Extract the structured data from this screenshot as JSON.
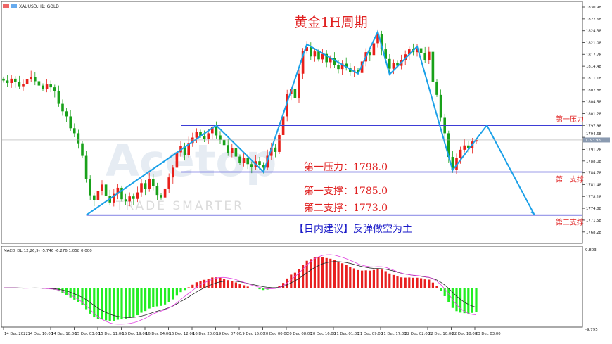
{
  "header": {
    "symbol": "XAUUSD,H1: GOLD"
  },
  "chart_data": [
    {
      "type": "candlestick",
      "title": "黄金1H周期",
      "price_ticks": [
        "1830.98",
        "1827.68",
        "1824.38",
        "1821.08",
        "1817.78",
        "1814.48",
        "1811.18",
        "1807.88",
        "1804.58",
        "1801.28",
        "1797.98",
        "1794.68",
        "1791.28",
        "1788.08",
        "1784.78",
        "1781.48",
        "1778.18",
        "1774.88",
        "1771.58",
        "1768.28"
      ],
      "ylim": [
        1768.28,
        1830.98
      ],
      "current_price": "1793.93",
      "time_ticks": [
        "14 Dec 2022",
        "14 Dec 10:00",
        "14 Dec 18:00",
        "15 Dec 03:00",
        "15 Dec 11:00",
        "15 Dec 19:00",
        "16 Dec 04:00",
        "16 Dec 12:00",
        "16 Dec 20:00",
        "19 Dec 07:00",
        "19 Dec 15:00",
        "20 Dec 00:00",
        "20 Dec 08:00",
        "20 Dec 16:00",
        "21 Dec 01:00",
        "21 Dec 09:00",
        "21 Dec 17:00",
        "22 Dec 02:00",
        "22 Dec 10:00",
        "22 Dec 18:00",
        "23 Dec 03:00"
      ],
      "closes": [
        1810.5,
        1809.8,
        1811,
        1810.2,
        1808.9,
        1809.5,
        1810.8,
        1811.5,
        1810.3,
        1809.1,
        1808.2,
        1809.4,
        1808.6,
        1807.5,
        1804,
        1801.9,
        1800.5,
        1797.2,
        1795.8,
        1793,
        1789.5,
        1783,
        1778.5,
        1777.2,
        1779.8,
        1781.5,
        1778.3,
        1776.5,
        1778.9,
        1780.6,
        1777.4,
        1776.8,
        1778.2,
        1777.5,
        1779.3,
        1781.9,
        1780.2,
        1783.1,
        1781,
        1778.6,
        1777.9,
        1780.4,
        1783.5,
        1786.2,
        1790.5,
        1792.3,
        1789.8,
        1793.1,
        1794.6,
        1796.2,
        1795.1,
        1794.3,
        1795.8,
        1797.5,
        1795.2,
        1794,
        1792.5,
        1790.2,
        1791.6,
        1789.3,
        1787.5,
        1788.9,
        1787.2,
        1786.4,
        1788,
        1786.9,
        1786.2,
        1789.5,
        1791.8,
        1790.6,
        1795.3,
        1800.5,
        1806.8,
        1808.2,
        1805.5,
        1812.4,
        1818.7,
        1819.8,
        1817.2,
        1818.6,
        1816.4,
        1817.9,
        1815.6,
        1816.8,
        1814.9,
        1813.7,
        1815.2,
        1814,
        1812.9,
        1813.5,
        1812.6,
        1815.8,
        1818.4,
        1817.6,
        1820.9,
        1823.5,
        1819.2,
        1816.5,
        1813.8,
        1815.4,
        1814.6,
        1816.2,
        1817.8,
        1819.2,
        1818.4,
        1819.5,
        1818.1,
        1816.2,
        1818.5,
        1810.2,
        1806.5,
        1800.1,
        1795.8,
        1789.2,
        1785.6,
        1788.9,
        1791.2,
        1792.4,
        1791.6,
        1793.5,
        1793.9
      ],
      "zigzag": [
        [
          21,
          1773
        ],
        [
          54,
          1798
        ],
        [
          66,
          1785
        ],
        [
          77,
          1820.6
        ],
        [
          90,
          1812.4
        ],
        [
          95,
          1824.1
        ],
        [
          98,
          1812.2
        ],
        [
          105,
          1820
        ],
        [
          114,
          1785.5
        ],
        [
          122.7,
          1798
        ],
        [
          134.8,
          1773
        ]
      ],
      "levels": [
        {
          "price": 1798,
          "label": "第一压力",
          "from_bar": 45
        },
        {
          "price": 1785,
          "label": "第一支撑",
          "from_bar": 45
        },
        {
          "price": 1773,
          "label": "第二支撑",
          "from_bar": 21
        }
      ],
      "colors": {
        "up": "#e8201a",
        "down": "#19a11a",
        "level": "#3d3dd6",
        "zigzag": "#1aa0e8",
        "text_red": "#e02020",
        "text_blue": "#1a1ac8"
      }
    },
    {
      "type": "macd",
      "label": "MACD_DL(12,26,9) -5.746 -6.276 1.058 0.000",
      "ylim": [
        -9.795,
        9.803
      ],
      "ticks": [
        "9.803",
        "-9.795"
      ],
      "colors": {
        "positive": "#e82020",
        "negative": "#22ee22",
        "signal": "#222222",
        "line2": "#e040e0"
      }
    }
  ],
  "annotations": {
    "r1": "第一压力：1798.0",
    "s1": "第一支撑：1785.0",
    "s2": "第二支撑：1773.0",
    "advice": "【日内建议】反弹做空为主",
    "watermark1": "Acetop",
    "watermark2": "TRADE SMARTER"
  }
}
